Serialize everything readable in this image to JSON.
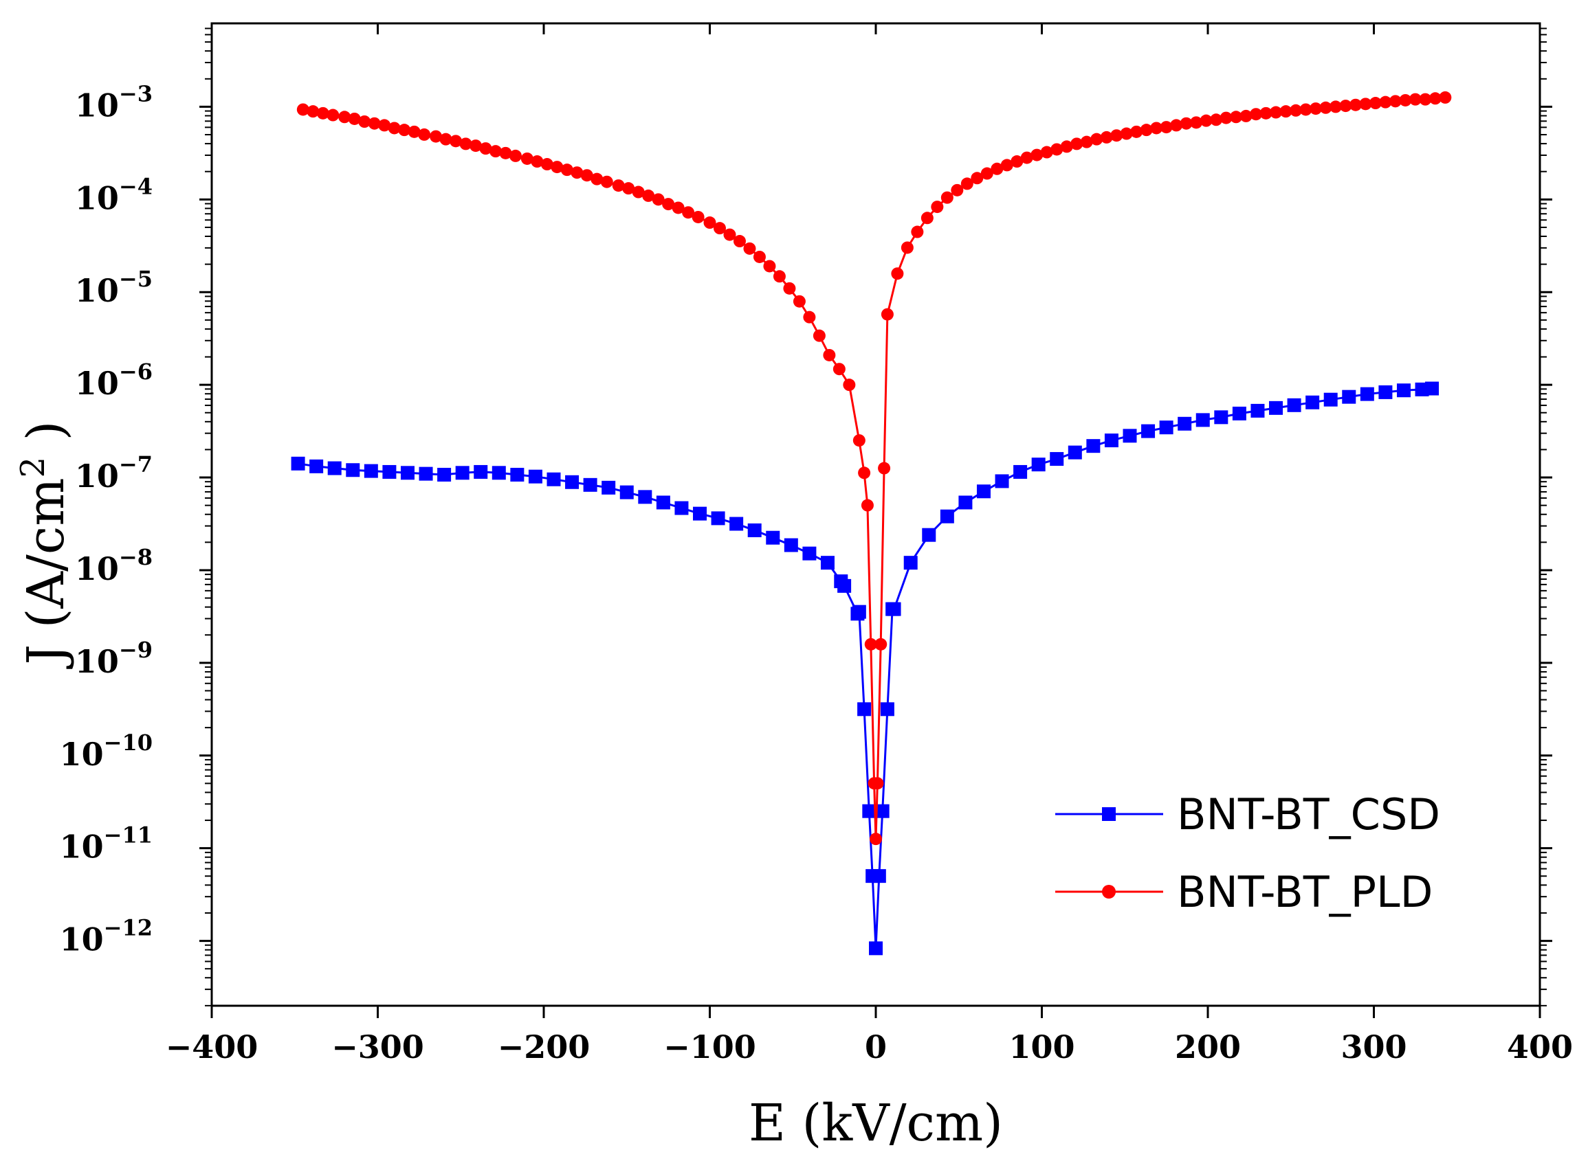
{
  "chart_data": {
    "type": "scatter",
    "title": "",
    "xlabel": "E (kV/cm)",
    "ylabel_prefix": "J (A/cm",
    "ylabel_sup": "2",
    "ylabel_suffix": " )",
    "xlim": [
      -400,
      400
    ],
    "ylim_log10": [
      -12.7,
      -2.1
    ],
    "y_scale": "log",
    "x_ticks": [
      -400,
      -300,
      -200,
      -100,
      0,
      100,
      200,
      300,
      400
    ],
    "x_tick_labels": [
      "−400",
      "−300",
      "−200",
      "−100",
      "0",
      "100",
      "200",
      "300",
      "400"
    ],
    "y_ticks_exp": [
      -3,
      -4,
      -5,
      -6,
      -7,
      -8,
      -9,
      -10,
      -11,
      -12
    ],
    "y_tick_labels": [
      {
        "base": "10",
        "exp": "−3"
      },
      {
        "base": "10",
        "exp": "−4"
      },
      {
        "base": "10",
        "exp": "−5"
      },
      {
        "base": "10",
        "exp": "−6"
      },
      {
        "base": "10",
        "exp": "−7"
      },
      {
        "base": "10",
        "exp": "−8"
      },
      {
        "base": "10",
        "exp": "−9"
      },
      {
        "base": "10",
        "exp": "−10"
      },
      {
        "base": "10",
        "exp": "−11"
      },
      {
        "base": "10",
        "exp": "−12"
      }
    ],
    "grid": false,
    "legend_position": "bottom-right",
    "series": [
      {
        "name": "BNT-BT_CSD",
        "color": "#0000ff",
        "marker": "square",
        "x": [
          -348,
          -337,
          -326,
          -315,
          -304,
          -293,
          -282,
          -271,
          -260,
          -249,
          -238,
          -227,
          -216,
          -205,
          -194,
          -183,
          -172,
          -161,
          -150,
          -139,
          -128,
          -117,
          -106,
          -95,
          -84,
          -73,
          -62,
          -51,
          -40,
          -29,
          -21,
          -19,
          -11,
          -10,
          -7,
          -4,
          -2,
          0,
          2,
          4,
          7,
          10,
          11,
          21,
          32,
          43,
          54,
          65,
          76,
          87,
          98,
          109,
          120,
          131,
          142,
          153,
          164,
          175,
          186,
          197,
          208,
          219,
          230,
          241,
          252,
          263,
          274,
          285,
          296,
          307,
          318,
          329,
          335
        ],
        "log10y": [
          -6.85,
          -6.88,
          -6.9,
          -6.92,
          -6.93,
          -6.94,
          -6.95,
          -6.96,
          -6.97,
          -6.95,
          -6.94,
          -6.95,
          -6.97,
          -6.99,
          -7.02,
          -7.05,
          -7.08,
          -7.11,
          -7.16,
          -7.21,
          -7.27,
          -7.33,
          -7.39,
          -7.44,
          -7.5,
          -7.57,
          -7.65,
          -7.73,
          -7.82,
          -7.92,
          -8.12,
          -8.17,
          -8.47,
          -8.45,
          -9.5,
          -10.6,
          -11.3,
          -12.08,
          -11.3,
          -10.6,
          -9.5,
          -8.42,
          -8.42,
          -7.92,
          -7.62,
          -7.42,
          -7.27,
          -7.15,
          -7.04,
          -6.94,
          -6.86,
          -6.8,
          -6.73,
          -6.66,
          -6.6,
          -6.55,
          -6.5,
          -6.46,
          -6.42,
          -6.38,
          -6.35,
          -6.31,
          -6.28,
          -6.25,
          -6.22,
          -6.19,
          -6.16,
          -6.13,
          -6.1,
          -6.08,
          -6.06,
          -6.05,
          -6.04
        ]
      },
      {
        "name": "BNT-BT_PLD",
        "color": "#ff0000",
        "marker": "circle",
        "x": [
          -345,
          -339,
          -333,
          -327,
          -320,
          -314,
          -308,
          -302,
          -296,
          -290,
          -284,
          -278,
          -272,
          -265,
          -259,
          -253,
          -247,
          -241,
          -235,
          -229,
          -223,
          -217,
          -210,
          -204,
          -198,
          -192,
          -186,
          -180,
          -174,
          -168,
          -162,
          -155,
          -149,
          -143,
          -137,
          -131,
          -125,
          -119,
          -113,
          -107,
          -100,
          -94,
          -88,
          -82,
          -76,
          -70,
          -64,
          -58,
          -52,
          -46,
          -40,
          -34,
          -28,
          -22,
          -16,
          -10,
          -7,
          -5,
          -3,
          -1,
          0,
          1,
          3,
          5,
          7,
          13,
          19,
          25,
          31,
          37,
          43,
          49,
          55,
          61,
          67,
          73,
          79,
          85,
          91,
          97,
          103,
          109,
          115,
          121,
          127,
          133,
          139,
          145,
          151,
          157,
          163,
          169,
          175,
          181,
          187,
          193,
          199,
          205,
          211,
          217,
          223,
          229,
          235,
          241,
          247,
          253,
          259,
          265,
          271,
          277,
          283,
          289,
          295,
          301,
          307,
          313,
          319,
          325,
          331,
          337,
          343
        ],
        "log10y": [
          -3.03,
          -3.05,
          -3.07,
          -3.09,
          -3.11,
          -3.13,
          -3.16,
          -3.18,
          -3.2,
          -3.23,
          -3.25,
          -3.27,
          -3.3,
          -3.32,
          -3.35,
          -3.37,
          -3.4,
          -3.42,
          -3.45,
          -3.48,
          -3.5,
          -3.53,
          -3.56,
          -3.59,
          -3.62,
          -3.65,
          -3.68,
          -3.71,
          -3.74,
          -3.78,
          -3.81,
          -3.85,
          -3.88,
          -3.92,
          -3.96,
          -4.0,
          -4.05,
          -4.09,
          -4.14,
          -4.19,
          -4.25,
          -4.31,
          -4.38,
          -4.45,
          -4.53,
          -4.62,
          -4.72,
          -4.83,
          -4.96,
          -5.1,
          -5.27,
          -5.47,
          -5.68,
          -5.83,
          -6.0,
          -6.6,
          -6.95,
          -7.3,
          -8.8,
          -10.3,
          -10.9,
          -10.3,
          -8.8,
          -6.9,
          -5.24,
          -4.8,
          -4.52,
          -4.35,
          -4.2,
          -4.08,
          -3.98,
          -3.9,
          -3.83,
          -3.77,
          -3.72,
          -3.67,
          -3.63,
          -3.59,
          -3.55,
          -3.52,
          -3.49,
          -3.46,
          -3.43,
          -3.4,
          -3.38,
          -3.35,
          -3.33,
          -3.31,
          -3.29,
          -3.27,
          -3.25,
          -3.23,
          -3.22,
          -3.2,
          -3.18,
          -3.17,
          -3.15,
          -3.14,
          -3.12,
          -3.11,
          -3.1,
          -3.08,
          -3.07,
          -3.06,
          -3.05,
          -3.04,
          -3.03,
          -3.02,
          -3.01,
          -3.0,
          -2.99,
          -2.98,
          -2.97,
          -2.96,
          -2.95,
          -2.94,
          -2.93,
          -2.92,
          -2.92,
          -2.91,
          -2.9
        ]
      }
    ]
  }
}
